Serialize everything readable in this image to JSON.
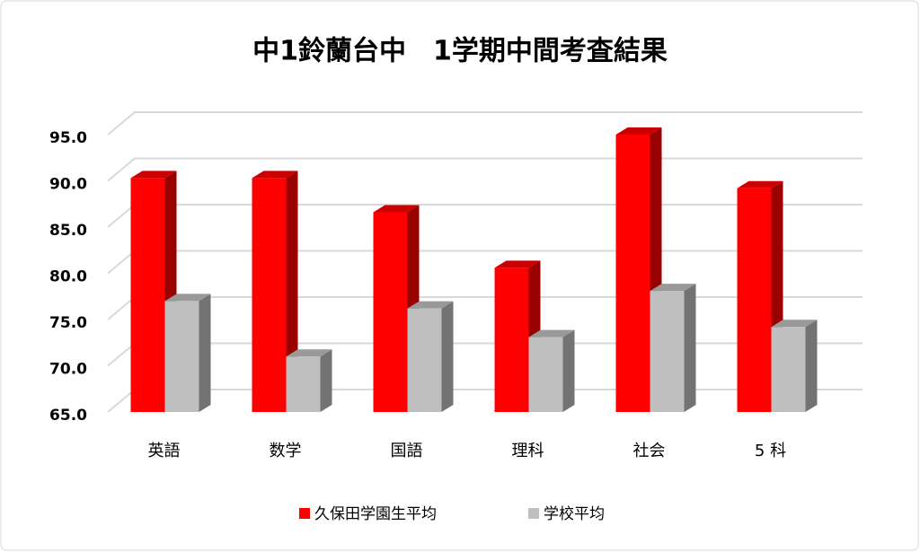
{
  "chart_data": {
    "type": "bar3d",
    "title": "中1鈴蘭台中　1学期中間考査結果",
    "categories": [
      "英語",
      "数学",
      "国語",
      "理科",
      "社会",
      "5 科"
    ],
    "series": [
      {
        "name": "久保田学園生平均",
        "color": "#ff0000",
        "values": [
          90.3,
          90.3,
          86.6,
          80.6,
          95.0,
          89.2
        ]
      },
      {
        "name": "学校平均",
        "color": "#bfbfbf",
        "values": [
          77.0,
          71.0,
          76.2,
          73.1,
          78.1,
          74.2
        ]
      }
    ],
    "ylim": [
      65,
      95
    ],
    "yticks": [
      {
        "value": 65,
        "label": "65.0"
      },
      {
        "value": 70,
        "label": "70.0"
      },
      {
        "value": 75,
        "label": "75.0"
      },
      {
        "value": 80,
        "label": "80.0"
      },
      {
        "value": 85,
        "label": "85.0"
      },
      {
        "value": 90,
        "label": "90.0"
      },
      {
        "value": 95,
        "label": "95.0"
      }
    ],
    "grid": true,
    "legend": "bottom"
  }
}
